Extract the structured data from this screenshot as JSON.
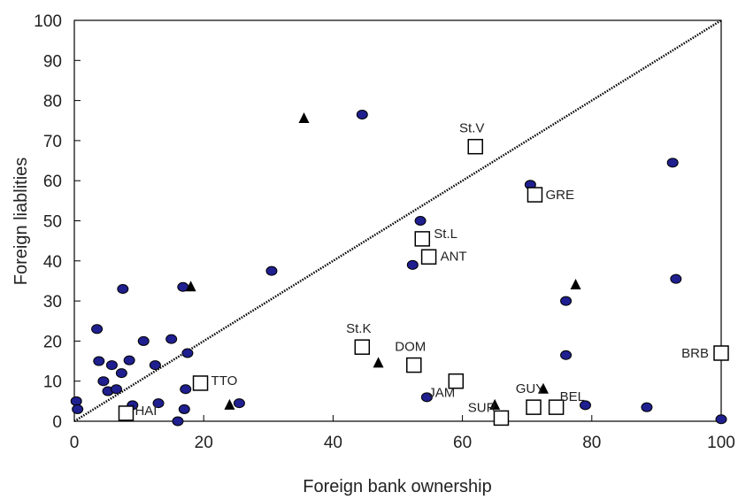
{
  "chart_data": {
    "type": "scatter",
    "title": "",
    "xlabel": "Foreign bank ownership",
    "ylabel": "Foreign liablities",
    "xlim": [
      0,
      100
    ],
    "ylim": [
      0,
      100
    ],
    "x_ticks": [
      "0",
      "20",
      "40",
      "60",
      "80",
      "100"
    ],
    "y_ticks": [
      "0",
      "10",
      "20",
      "30",
      "40",
      "50",
      "60",
      "70",
      "80",
      "90",
      "100"
    ],
    "grid": false,
    "diagonal_line": {
      "from": [
        0,
        0
      ],
      "to": [
        100,
        100
      ]
    },
    "series": [
      {
        "marker": "circle",
        "points": [
          [
            0.3,
            5
          ],
          [
            0.5,
            3
          ],
          [
            3.5,
            23
          ],
          [
            3.8,
            15
          ],
          [
            4.5,
            10
          ],
          [
            5.2,
            7.5
          ],
          [
            5.8,
            14
          ],
          [
            6.5,
            8
          ],
          [
            7.3,
            12
          ],
          [
            7.5,
            33
          ],
          [
            8.5,
            15.2
          ],
          [
            9,
            4
          ],
          [
            10.7,
            20
          ],
          [
            12.5,
            14
          ],
          [
            13,
            4.5
          ],
          [
            15,
            20.5
          ],
          [
            16,
            0
          ],
          [
            16.8,
            33.5
          ],
          [
            17,
            3
          ],
          [
            17.2,
            8
          ],
          [
            17.5,
            17
          ],
          [
            25.5,
            4.5
          ],
          [
            30.5,
            37.5
          ],
          [
            44.5,
            76.5
          ],
          [
            52.3,
            39
          ],
          [
            53.5,
            50
          ],
          [
            54.5,
            6
          ],
          [
            70.5,
            59
          ],
          [
            76,
            30
          ],
          [
            76,
            16.5
          ],
          [
            79,
            4
          ],
          [
            88.5,
            3.5
          ],
          [
            92.5,
            64.5
          ],
          [
            93,
            35.5
          ],
          [
            100,
            0.5
          ]
        ]
      },
      {
        "marker": "triangle",
        "points": [
          [
            18,
            33.5
          ],
          [
            24,
            4
          ],
          [
            35.5,
            75.5
          ],
          [
            47,
            14.5
          ],
          [
            65,
            4
          ],
          [
            72.5,
            8
          ],
          [
            77.5,
            34
          ]
        ]
      },
      {
        "marker": "square",
        "points": [
          {
            "x": 8,
            "y": 2,
            "label": "HAI"
          },
          {
            "x": 19.5,
            "y": 9.5,
            "label": "TTO"
          },
          {
            "x": 44.5,
            "y": 18.5,
            "label": "St.K"
          },
          {
            "x": 52.5,
            "y": 14,
            "label": "DOM"
          },
          {
            "x": 53.8,
            "y": 45.5,
            "label": "St.L"
          },
          {
            "x": 54.8,
            "y": 41,
            "label": "ANT"
          },
          {
            "x": 59,
            "y": 10,
            "label": "JAM"
          },
          {
            "x": 62,
            "y": 68.5,
            "label": "St.V"
          },
          {
            "x": 66,
            "y": 0.8,
            "label": "SUR"
          },
          {
            "x": 71,
            "y": 3.5,
            "label": "GUY"
          },
          {
            "x": 71.2,
            "y": 56.5,
            "label": "GRE"
          },
          {
            "x": 74.5,
            "y": 3.5,
            "label": "BEL"
          },
          {
            "x": 100,
            "y": 17,
            "label": "BRB"
          }
        ]
      }
    ]
  }
}
